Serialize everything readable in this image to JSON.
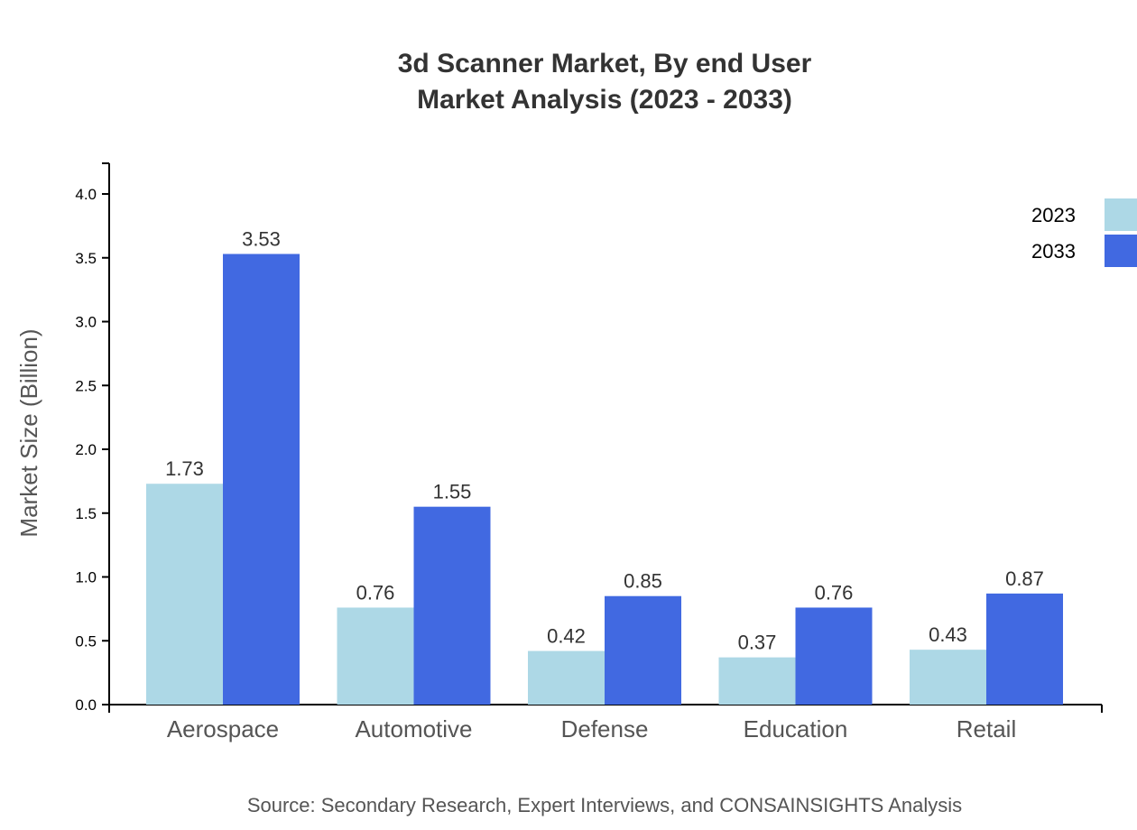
{
  "chart_data": {
    "type": "bar",
    "title": "3d Scanner Market, By end User",
    "subtitle": "Market Analysis (2023 - 2033)",
    "xlabel": "",
    "ylabel": "Market Size (Billion)",
    "ylim": [
      0,
      4.2
    ],
    "yticks": [
      "0.0",
      "0.5",
      "1.0",
      "1.5",
      "2.0",
      "2.5",
      "3.0",
      "3.5",
      "4.0"
    ],
    "categories": [
      "Aerospace",
      "Automotive",
      "Defense",
      "Education",
      "Retail"
    ],
    "series": [
      {
        "name": "2023",
        "color": "#add8e6",
        "values": [
          1.73,
          0.76,
          0.42,
          0.37,
          0.43
        ]
      },
      {
        "name": "2033",
        "color": "#4169e1",
        "values": [
          3.53,
          1.55,
          0.85,
          0.76,
          0.87
        ]
      }
    ],
    "legend_position": "top-right",
    "grid": false,
    "source": "Source: Secondary Research, Expert Interviews, and CONSAINSIGHTS Analysis"
  }
}
